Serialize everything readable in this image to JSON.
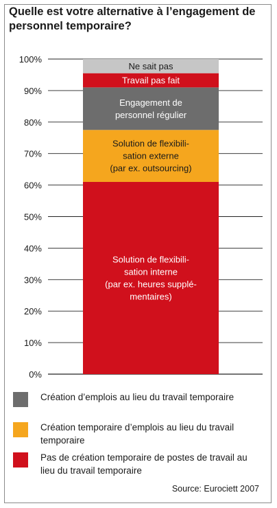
{
  "chart_data": {
    "type": "bar",
    "stacked": true,
    "title": "Quelle est votre alternative à l’engagement de personnel temporaire?",
    "ylim": [
      0,
      100
    ],
    "yticks": [
      "0%",
      "10%",
      "20%",
      "30%",
      "40%",
      "50%",
      "60%",
      "70%",
      "80%",
      "90%",
      "100%"
    ],
    "grid": true,
    "segments": [
      {
        "label_lines": [
          "Solution de flexibili-",
          "sation interne",
          "(par ex. heures supplé-",
          "mentaires)"
        ],
        "value": 61,
        "color": "#d0101c",
        "text_color": "#ffffff"
      },
      {
        "label_lines": [
          "Solution de flexibili-",
          "sation externe",
          "(par ex. outsourcing)"
        ],
        "value": 16.5,
        "color": "#f5a61e",
        "text_color": "#1a1a1a"
      },
      {
        "label_lines": [
          "Engagement de",
          "personnel régulier"
        ],
        "value": 13.5,
        "color": "#6d6d6d",
        "text_color": "#ffffff"
      },
      {
        "label_lines": [
          "Travail pas fait"
        ],
        "value": 4.5,
        "color": "#d0101c",
        "text_color": "#ffffff"
      },
      {
        "label_lines": [
          "Ne sait pas"
        ],
        "value": 4.5,
        "color": "#c6c6c6",
        "text_color": "#1a1a1a"
      }
    ]
  },
  "legend": [
    {
      "color": "#6d6d6d",
      "text": "Création d’emplois au lieu du travail temporaire"
    },
    {
      "color": "#f5a61e",
      "text": "Création temporaire d’emplois au lieu du travail temporaire"
    },
    {
      "color": "#d0101c",
      "text": "Pas de création temporaire de postes de travail au lieu du travail temporaire"
    }
  ],
  "source": "Source: Eurociett 2007"
}
